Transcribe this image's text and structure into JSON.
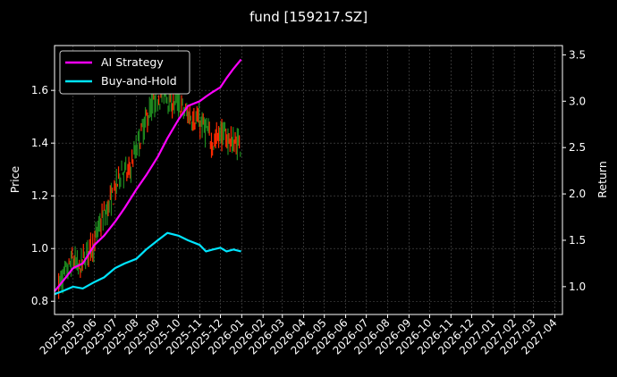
{
  "chart_data": {
    "type": "line",
    "title": "fund [159217.SZ]",
    "ylabel_left": "Price",
    "ylabel_right": "Return",
    "x_ticks": [
      "2025-05",
      "2025-06",
      "2025-07",
      "2025-08",
      "2025-09",
      "2025-10",
      "2025-11",
      "2025-12",
      "2026-01",
      "2026-02",
      "2026-03",
      "2026-04",
      "2026-05",
      "2026-06",
      "2026-07",
      "2026-08",
      "2026-09",
      "2026-10",
      "2026-11",
      "2026-12",
      "2027-01",
      "2027-02",
      "2027-03",
      "2027-04"
    ],
    "xlim": [
      "2025-04-04",
      "2027-04-12"
    ],
    "ylim_left": [
      0.75,
      1.77
    ],
    "yticks_left": [
      0.8,
      1.0,
      1.2,
      1.4,
      1.6
    ],
    "ylim_right": [
      0.7,
      3.6
    ],
    "yticks_right": [
      1.0,
      1.5,
      2.0,
      2.5,
      3.0,
      3.5
    ],
    "grid": true,
    "legend": {
      "placement": "top-left",
      "entries": [
        "AI Strategy",
        "Buy-and-Hold"
      ]
    },
    "colors": {
      "ai": "#ff00ff",
      "bh": "#00e5ff",
      "up": "#ff2a00",
      "down": "#1f8a1f",
      "grid": "#555555",
      "spine": "#ffffff"
    },
    "price_series": {
      "name": "",
      "x": [
        "2025-04-10",
        "2025-04-20",
        "2025-05-01",
        "2025-05-10",
        "2025-05-20",
        "2025-06-01",
        "2025-06-10",
        "2025-06-20",
        "2025-07-01",
        "2025-07-10",
        "2025-07-20",
        "2025-08-01",
        "2025-08-10",
        "2025-08-20",
        "2025-09-01",
        "2025-09-10",
        "2025-09-20",
        "2025-10-01",
        "2025-10-10",
        "2025-10-20",
        "2025-11-01",
        "2025-11-10",
        "2025-11-20",
        "2025-12-01",
        "2025-12-10",
        "2025-12-20",
        "2025-12-31"
      ],
      "values": [
        0.86,
        0.9,
        0.96,
        0.92,
        0.98,
        1.02,
        1.1,
        1.15,
        1.22,
        1.3,
        1.28,
        1.38,
        1.45,
        1.52,
        1.58,
        1.6,
        1.56,
        1.55,
        1.52,
        1.5,
        1.48,
        1.45,
        1.4,
        1.44,
        1.42,
        1.4,
        1.4
      ]
    },
    "series": [
      {
        "name": "AI Strategy",
        "axis": "right",
        "x": [
          "2025-04-04",
          "2025-04-15",
          "2025-05-01",
          "2025-05-15",
          "2025-06-01",
          "2025-06-15",
          "2025-07-01",
          "2025-07-15",
          "2025-08-01",
          "2025-08-15",
          "2025-09-01",
          "2025-09-15",
          "2025-10-01",
          "2025-10-15",
          "2025-11-01",
          "2025-11-10",
          "2025-11-20",
          "2025-12-01",
          "2025-12-10",
          "2025-12-20",
          "2025-12-31"
        ],
        "values": [
          0.95,
          1.05,
          1.2,
          1.25,
          1.45,
          1.55,
          1.7,
          1.85,
          2.05,
          2.2,
          2.4,
          2.6,
          2.8,
          2.95,
          3.0,
          3.05,
          3.1,
          3.15,
          3.25,
          3.35,
          3.45
        ]
      },
      {
        "name": "Buy-and-Hold",
        "axis": "right",
        "x": [
          "2025-04-04",
          "2025-04-15",
          "2025-05-01",
          "2025-05-15",
          "2025-06-01",
          "2025-06-15",
          "2025-07-01",
          "2025-07-15",
          "2025-08-01",
          "2025-08-15",
          "2025-09-01",
          "2025-09-15",
          "2025-10-01",
          "2025-10-15",
          "2025-11-01",
          "2025-11-10",
          "2025-11-20",
          "2025-12-01",
          "2025-12-10",
          "2025-12-20",
          "2025-12-31"
        ],
        "values": [
          0.92,
          0.95,
          1.0,
          0.98,
          1.05,
          1.1,
          1.2,
          1.25,
          1.3,
          1.4,
          1.5,
          1.58,
          1.55,
          1.5,
          1.45,
          1.38,
          1.4,
          1.42,
          1.38,
          1.4,
          1.38
        ]
      }
    ]
  }
}
